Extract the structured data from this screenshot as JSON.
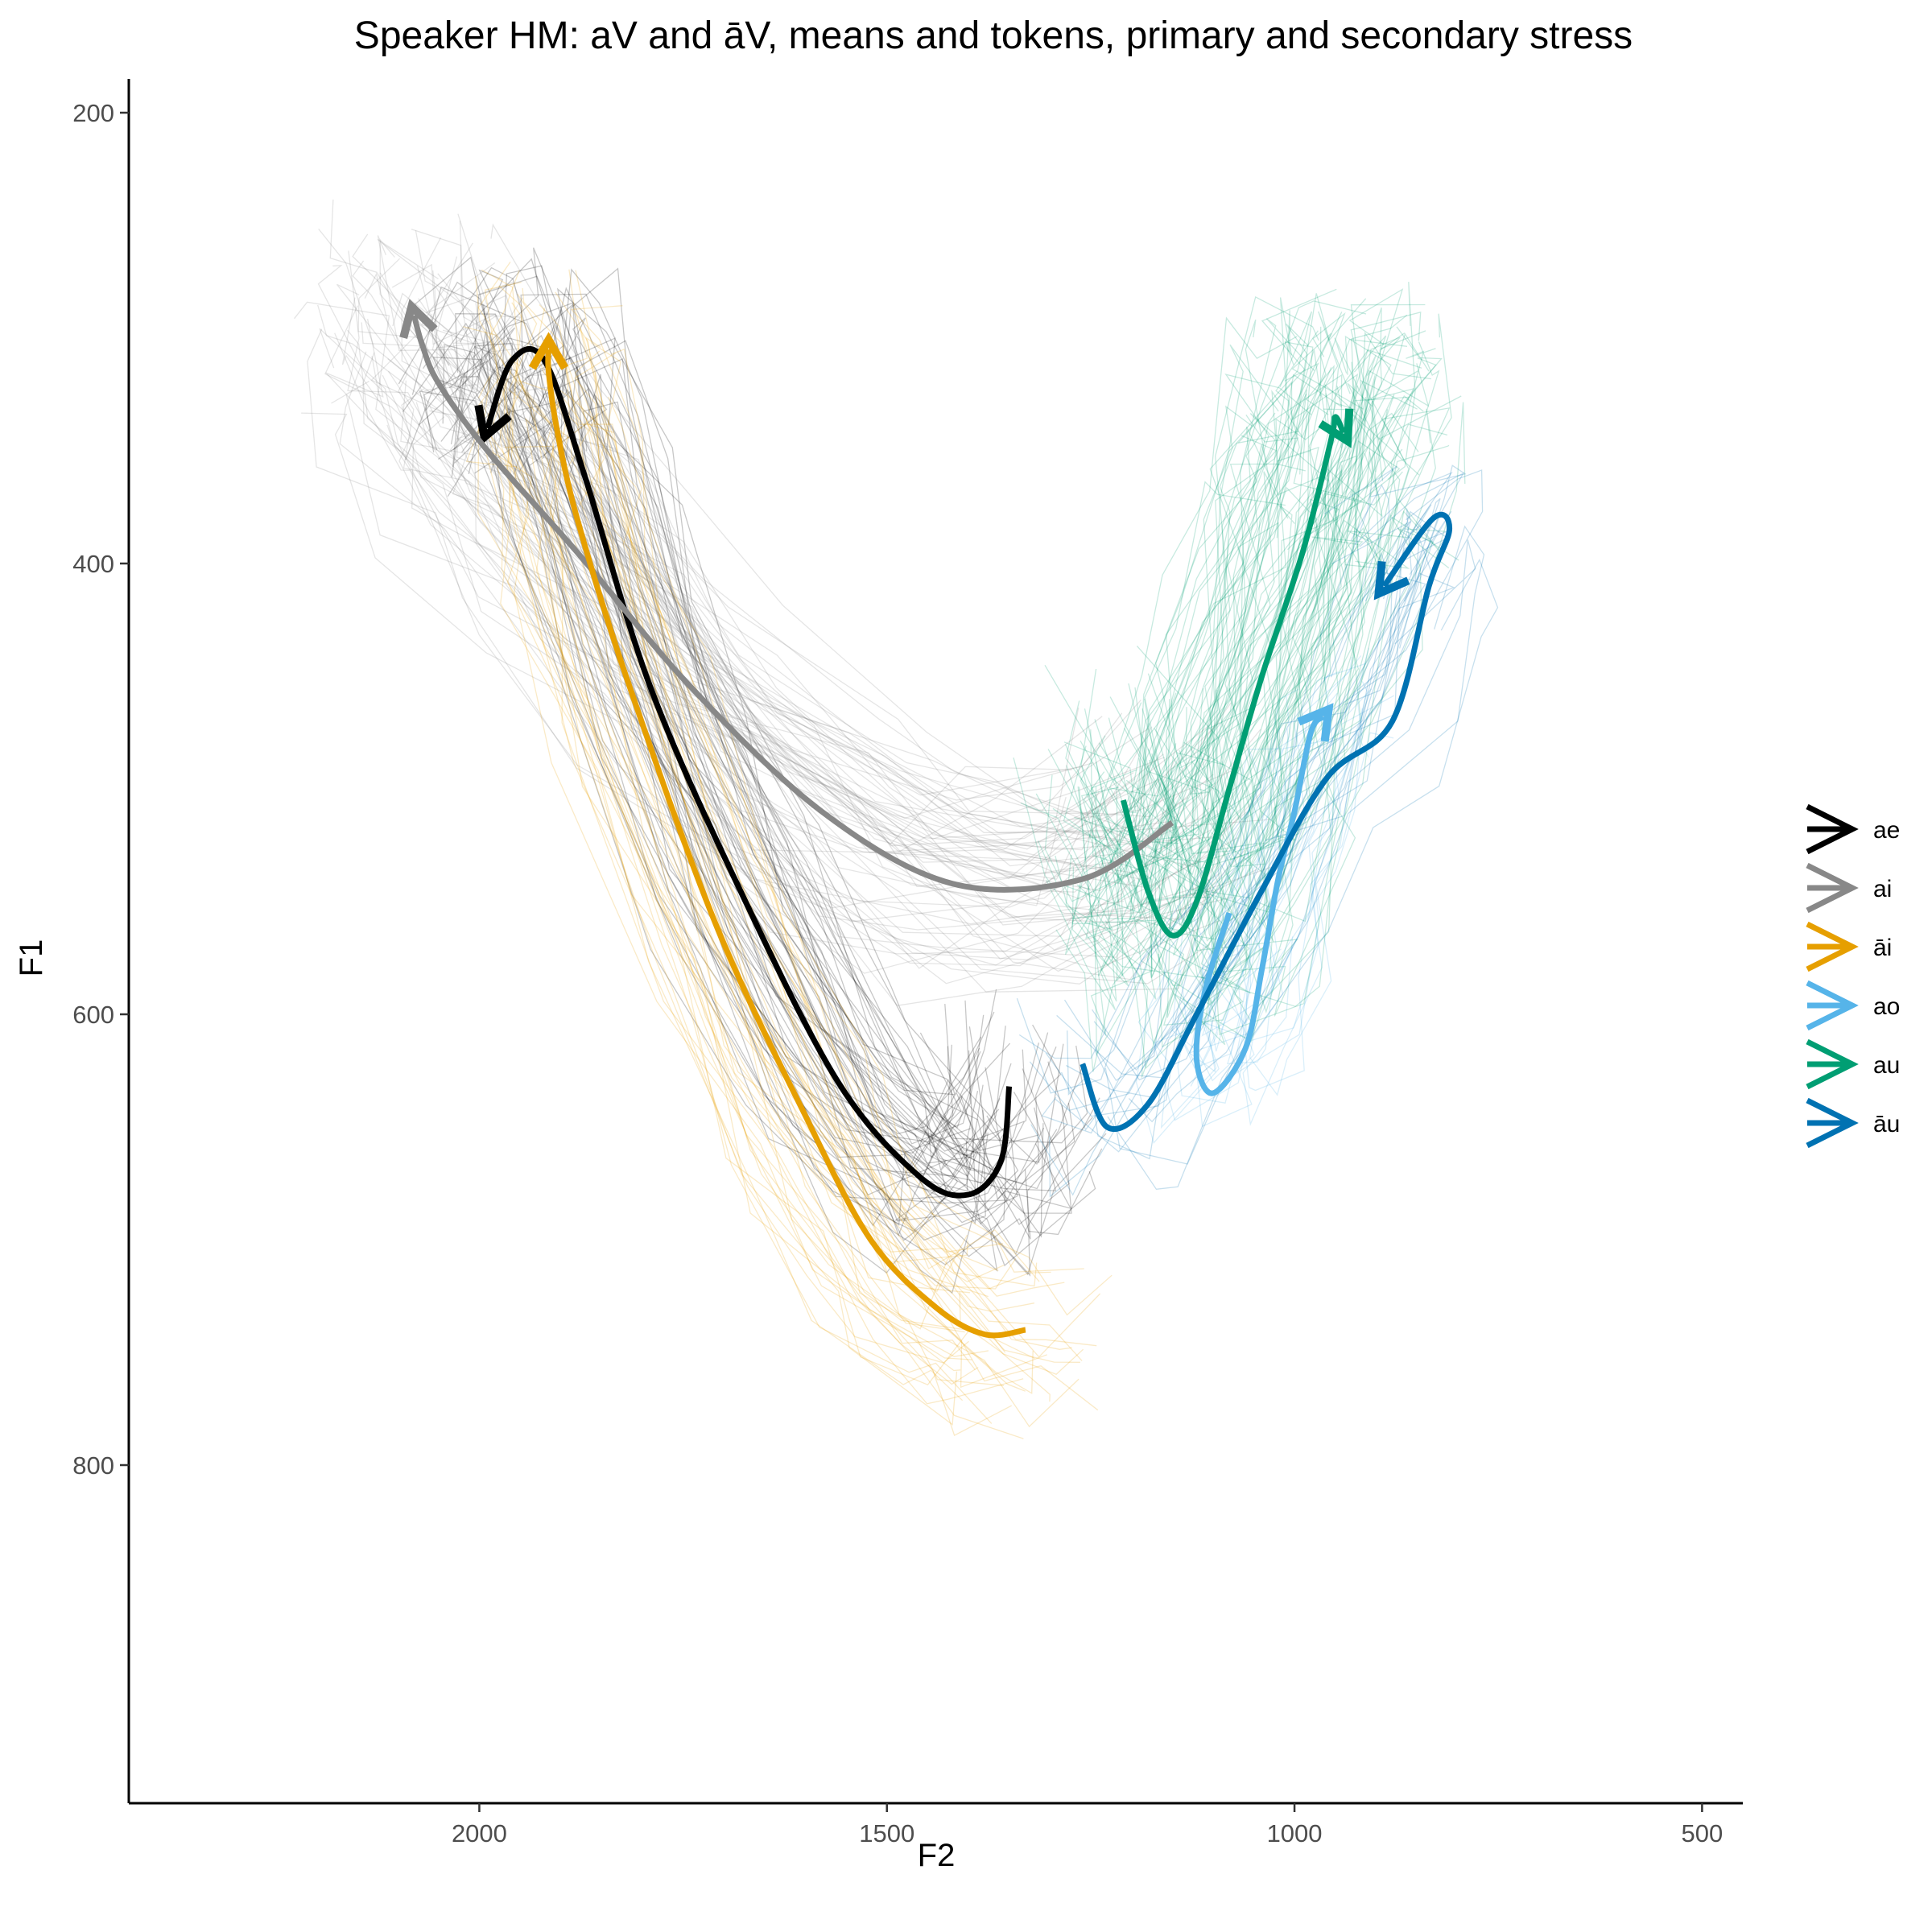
{
  "chart_data": {
    "type": "line",
    "title": "Speaker HM: aV and āV, means and tokens, primary and secondary stress",
    "xlabel": "F2",
    "ylabel": "F1",
    "x_reversed": true,
    "y_reversed": true,
    "xlim": [
      2430,
      450
    ],
    "ylim": [
      185,
      950
    ],
    "x_ticks": [
      2000,
      1500,
      1000,
      500
    ],
    "x_tick_labels": [
      "2000",
      "1500",
      "1000",
      "500"
    ],
    "y_ticks": [
      200,
      400,
      600,
      800
    ],
    "y_tick_labels": [
      "200",
      "400",
      "600",
      "800"
    ],
    "grid": false,
    "legend_position": "right",
    "token_trajectories": "many thin semi-transparent individual token trajectories per vowel, drawn behind the means",
    "series": [
      {
        "name": "ae",
        "color": "#000000",
        "points": [
          [
            1350,
            632
          ],
          [
            1360,
            665
          ],
          [
            1400,
            680
          ],
          [
            1460,
            672
          ],
          [
            1560,
            630
          ],
          [
            1680,
            545
          ],
          [
            1790,
            455
          ],
          [
            1870,
            362
          ],
          [
            1920,
            310
          ],
          [
            1960,
            310
          ],
          [
            1990,
            340
          ]
        ]
      },
      {
        "name": "ai",
        "color": "#888888",
        "points": [
          [
            1150,
            515
          ],
          [
            1260,
            540
          ],
          [
            1420,
            542
          ],
          [
            1580,
            510
          ],
          [
            1740,
            455
          ],
          [
            1880,
            395
          ],
          [
            1990,
            350
          ],
          [
            2050,
            320
          ],
          [
            2070,
            303
          ],
          [
            2080,
            290
          ]
        ]
      },
      {
        "name": "āi",
        "color": "#E69F00",
        "points": [
          [
            1330,
            740
          ],
          [
            1380,
            742
          ],
          [
            1440,
            730
          ],
          [
            1520,
            700
          ],
          [
            1600,
            645
          ],
          [
            1710,
            560
          ],
          [
            1820,
            450
          ],
          [
            1880,
            380
          ],
          [
            1905,
            340
          ],
          [
            1915,
            315
          ],
          [
            1915,
            305
          ]
        ]
      },
      {
        "name": "ao",
        "color": "#56B4E9",
        "points": [
          [
            1080,
            555
          ],
          [
            1110,
            590
          ],
          [
            1120,
            620
          ],
          [
            1100,
            635
          ],
          [
            1060,
            615
          ],
          [
            1040,
            580
          ],
          [
            1020,
            540
          ],
          [
            1000,
            510
          ],
          [
            980,
            475
          ],
          [
            965,
            468
          ]
        ]
      },
      {
        "name": "au",
        "color": "#009E73",
        "points": [
          [
            1210,
            505
          ],
          [
            1180,
            545
          ],
          [
            1150,
            565
          ],
          [
            1120,
            550
          ],
          [
            1080,
            500
          ],
          [
            1040,
            450
          ],
          [
            990,
            395
          ],
          [
            955,
            345
          ],
          [
            950,
            335
          ],
          [
            940,
            342
          ]
        ]
      },
      {
        "name": "āu",
        "color": "#0072B2",
        "points": [
          [
            1260,
            622
          ],
          [
            1230,
            650
          ],
          [
            1180,
            640
          ],
          [
            1120,
            600
          ],
          [
            1040,
            545
          ],
          [
            960,
            495
          ],
          [
            880,
            470
          ],
          [
            835,
            410
          ],
          [
            810,
            385
          ],
          [
            830,
            380
          ],
          [
            890,
            410
          ]
        ]
      }
    ]
  }
}
